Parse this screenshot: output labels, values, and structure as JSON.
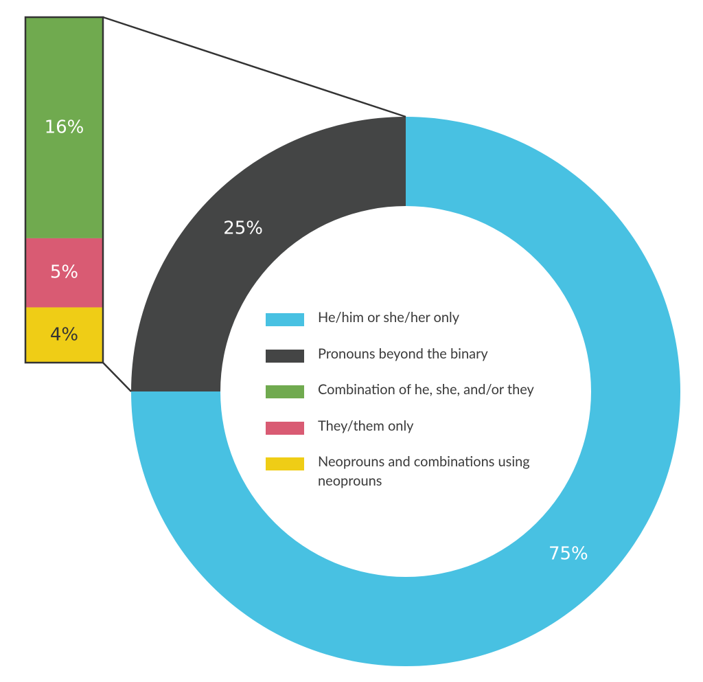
{
  "chart_data": {
    "type": "donut-with-breakdown",
    "categories": [
      "He/him or she/her only",
      "Pronouns beyond the binary"
    ],
    "values": [
      75,
      25
    ],
    "value_labels": [
      "75%",
      "25%"
    ],
    "colors": [
      "#48c1e2",
      "#444545"
    ],
    "breakdown": {
      "categories": [
        "Combination of he, she, and/or they",
        "They/them only",
        "Neoprouns and combinations using neoprouns"
      ],
      "values": [
        16,
        5,
        4
      ],
      "value_labels": [
        "16%",
        "5%",
        "4%"
      ],
      "colors": [
        "#70aa4f",
        "#d95b73",
        "#efcd16"
      ]
    }
  }
}
